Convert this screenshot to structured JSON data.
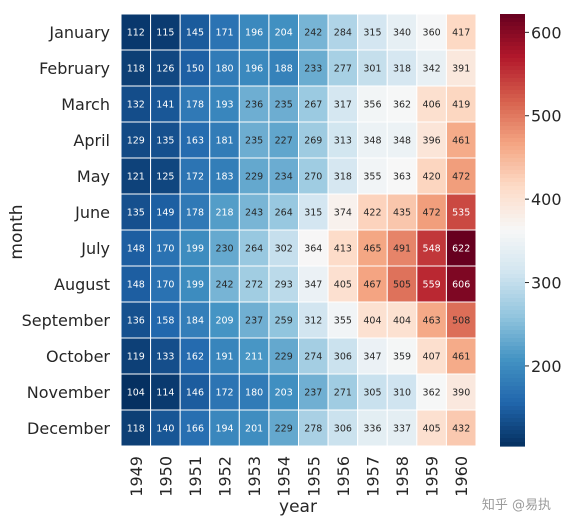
{
  "chart_data": {
    "type": "heatmap",
    "xlabel": "year",
    "ylabel": "month",
    "x": [
      "1949",
      "1950",
      "1951",
      "1952",
      "1953",
      "1954",
      "1955",
      "1956",
      "1957",
      "1958",
      "1959",
      "1960"
    ],
    "y": [
      "January",
      "February",
      "March",
      "April",
      "May",
      "June",
      "July",
      "August",
      "September",
      "October",
      "November",
      "December"
    ],
    "values": [
      [
        112,
        115,
        145,
        171,
        196,
        204,
        242,
        284,
        315,
        340,
        360,
        417
      ],
      [
        118,
        126,
        150,
        180,
        196,
        188,
        233,
        277,
        301,
        318,
        342,
        391
      ],
      [
        132,
        141,
        178,
        193,
        236,
        235,
        267,
        317,
        356,
        362,
        406,
        419
      ],
      [
        129,
        135,
        163,
        181,
        235,
        227,
        269,
        313,
        348,
        348,
        396,
        461
      ],
      [
        121,
        125,
        172,
        183,
        229,
        234,
        270,
        318,
        355,
        363,
        420,
        472
      ],
      [
        135,
        149,
        178,
        218,
        243,
        264,
        315,
        374,
        422,
        435,
        472,
        535
      ],
      [
        148,
        170,
        199,
        230,
        264,
        302,
        364,
        413,
        465,
        491,
        548,
        622
      ],
      [
        148,
        170,
        199,
        242,
        272,
        293,
        347,
        405,
        467,
        505,
        559,
        606
      ],
      [
        136,
        158,
        184,
        209,
        237,
        259,
        312,
        355,
        404,
        404,
        463,
        508
      ],
      [
        119,
        133,
        162,
        191,
        211,
        229,
        274,
        306,
        347,
        359,
        407,
        461
      ],
      [
        104,
        114,
        146,
        172,
        180,
        203,
        237,
        271,
        305,
        310,
        362,
        390
      ],
      [
        118,
        140,
        166,
        194,
        201,
        229,
        278,
        306,
        336,
        337,
        405,
        432
      ]
    ],
    "colorscale": "RdBu_r",
    "colorbar": {
      "vmin": 104,
      "vmax": 622,
      "ticks": [
        "200",
        "300",
        "400",
        "500",
        "600"
      ]
    }
  },
  "watermark": "知乎 @易执"
}
